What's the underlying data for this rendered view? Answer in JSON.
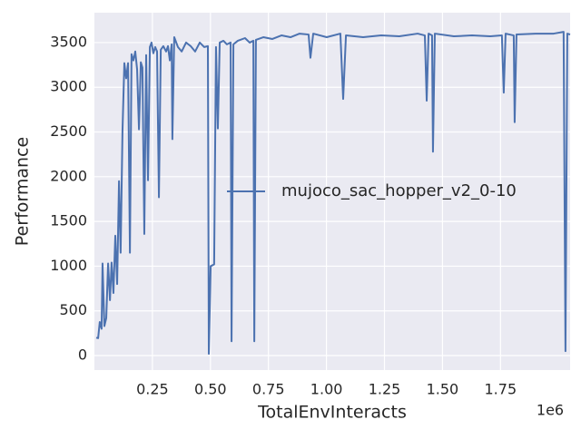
{
  "chart_data": {
    "type": "line",
    "xlabel": "TotalEnvInteracts",
    "ylabel": "Performance",
    "x_offset_label": "1e6",
    "x": [
      8000,
      16000,
      23000,
      31000,
      35000,
      43000,
      51000,
      59000,
      67000,
      74000,
      82000,
      90000,
      98000,
      106000,
      113000,
      121000,
      129000,
      137000,
      145000,
      153000,
      160000,
      168000,
      176000,
      184000,
      192000,
      200000,
      207000,
      215000,
      223000,
      231000,
      239000,
      246000,
      254000,
      262000,
      270000,
      278000,
      286000,
      297000,
      309000,
      317000,
      325000,
      333000,
      336000,
      344000,
      360000,
      376000,
      395000,
      415000,
      434000,
      454000,
      473000,
      489000,
      493000,
      501000,
      516000,
      524000,
      532000,
      540000,
      556000,
      571000,
      587000,
      591000,
      599000,
      618000,
      649000,
      669000,
      685000,
      689000,
      696000,
      728000,
      767000,
      806000,
      845000,
      884000,
      923000,
      931000,
      943000,
      1001000,
      1060000,
      1072000,
      1084000,
      1158000,
      1236000,
      1314000,
      1393000,
      1424000,
      1432000,
      1440000,
      1455000,
      1459000,
      1467000,
      1549000,
      1627000,
      1706000,
      1756000,
      1764000,
      1772000,
      1807000,
      1811000,
      1819000,
      1901000,
      1979000,
      2022000,
      2030000,
      2038000,
      2050000
    ],
    "series": [
      {
        "name": "mujoco_sac_hopper_v2_0-10",
        "color": "#4c72b0",
        "values": [
          200,
          195,
          375,
          300,
          1030,
          330,
          420,
          1030,
          620,
          1040,
          700,
          1340,
          800,
          1950,
          1150,
          2510,
          3270,
          3100,
          3270,
          1150,
          3370,
          3300,
          3400,
          3200,
          2530,
          3280,
          3220,
          1360,
          3360,
          1960,
          3450,
          3500,
          3380,
          3450,
          3400,
          1770,
          3420,
          3460,
          3400,
          3460,
          3300,
          3480,
          2420,
          3560,
          3450,
          3400,
          3500,
          3460,
          3400,
          3500,
          3450,
          3460,
          20,
          1000,
          1020,
          3450,
          2540,
          3500,
          3520,
          3480,
          3500,
          160,
          3480,
          3520,
          3550,
          3500,
          3520,
          160,
          3530,
          3560,
          3540,
          3580,
          3560,
          3600,
          3590,
          3330,
          3600,
          3560,
          3600,
          2870,
          3580,
          3560,
          3580,
          3570,
          3600,
          3580,
          2850,
          3600,
          3580,
          2280,
          3600,
          3570,
          3580,
          3570,
          3580,
          2940,
          3600,
          3580,
          2610,
          3590,
          3600,
          3600,
          3620,
          50,
          3600,
          3590
        ]
      }
    ],
    "xlim": [
      0,
      2050000
    ],
    "xticks": [
      {
        "value": 250000,
        "label": "0.25"
      },
      {
        "value": 500000,
        "label": "0.50"
      },
      {
        "value": 750000,
        "label": "0.75"
      },
      {
        "value": 1000000,
        "label": "1.00"
      },
      {
        "value": 1250000,
        "label": "1.25"
      },
      {
        "value": 1500000,
        "label": "1.50"
      },
      {
        "value": 1750000,
        "label": "1.75"
      }
    ],
    "ylim": [
      -162,
      3834
    ],
    "yticks": [
      0,
      500,
      1000,
      1500,
      2000,
      2500,
      3000,
      3500
    ],
    "grid": true,
    "legend": "center right"
  }
}
